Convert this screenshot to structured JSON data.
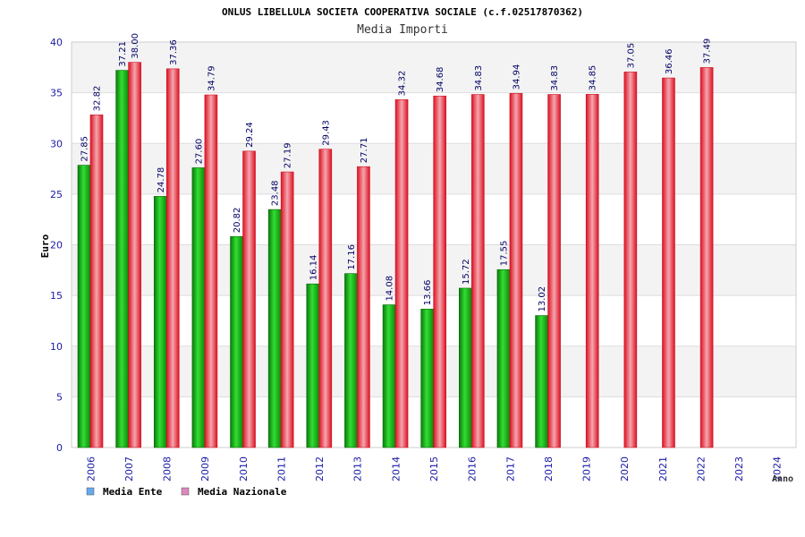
{
  "chart_data": {
    "type": "bar",
    "title": "ONLUS LIBELLULA SOCIETA COOPERATIVA SOCIALE (c.f.02517870362)",
    "subtitle": "Media Importi",
    "ylabel": "Euro",
    "xlabel": "Anno",
    "ylim": [
      0,
      40
    ],
    "yticks": [
      0,
      5,
      10,
      15,
      20,
      25,
      30,
      35,
      40
    ],
    "grid": "horizontal bands",
    "legend_position": "bottom-left",
    "categories": [
      "2006",
      "2007",
      "2008",
      "2009",
      "2010",
      "2011",
      "2012",
      "2013",
      "2014",
      "2015",
      "2016",
      "2017",
      "2018",
      "2019",
      "2020",
      "2021",
      "2022",
      "2023",
      "2024"
    ],
    "series": [
      {
        "name": "Media Ente",
        "color": "#11aa11",
        "legend_color": "#66aaee",
        "values": [
          27.85,
          37.21,
          24.78,
          27.6,
          20.82,
          23.48,
          16.14,
          17.16,
          14.08,
          13.66,
          15.72,
          17.55,
          13.02,
          null,
          null,
          null,
          null,
          null,
          null
        ],
        "labels": [
          "27.85",
          "37.21",
          "24.78",
          "27.60",
          "20.82",
          "23.48",
          "16.14",
          "17.16",
          "14.08",
          "13.66",
          "15.72",
          "17.55",
          "13.02",
          null,
          null,
          null,
          null,
          null,
          null
        ]
      },
      {
        "name": "Media Nazionale",
        "color": "#ee2233",
        "legend_color": "#dd88bb",
        "values": [
          32.82,
          38.0,
          37.36,
          34.79,
          29.24,
          27.19,
          29.43,
          27.71,
          34.32,
          34.68,
          34.83,
          34.94,
          34.83,
          34.85,
          37.05,
          36.46,
          37.49,
          null,
          null
        ],
        "labels": [
          "32.82",
          "38.00",
          "37.36",
          "34.79",
          "29.24",
          "27.19",
          "29.43",
          "27.71",
          "34.32",
          "34.68",
          "34.83",
          "34.94",
          "34.83",
          "34.85",
          "37.05",
          "36.46",
          "37.49",
          null,
          null
        ]
      }
    ]
  }
}
